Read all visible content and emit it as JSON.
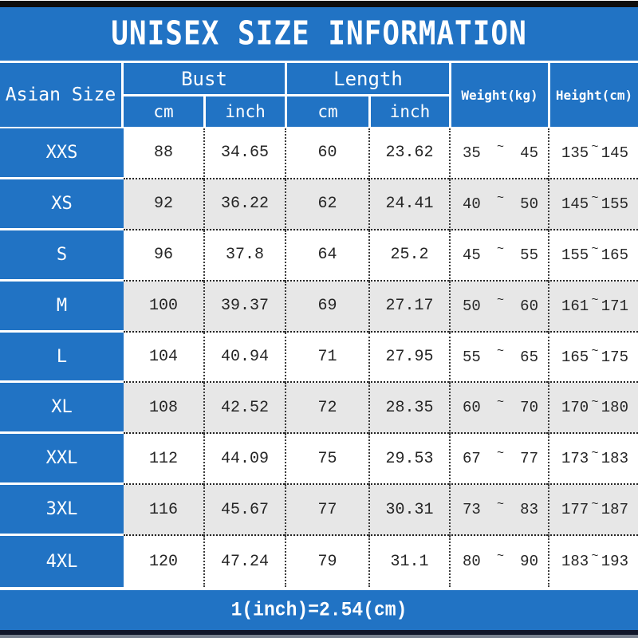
{
  "title": "UNISEX SIZE INFORMATION",
  "footer_note": "1(inch)=2.54(cm)",
  "colors": {
    "blue": "#2173c4",
    "row_alt": "#e7e7e7",
    "top_bar": "#0d0d0d"
  },
  "header": {
    "corner": "Asian Size",
    "bust": "Bust",
    "length": "Length",
    "cm": "cm",
    "inch": "inch",
    "weight": "Weight(kg)",
    "height": "Height(cm)"
  },
  "table": {
    "tilde": "~",
    "rows": [
      {
        "size": "XXS",
        "bust_cm": "88",
        "bust_inch": "34.65",
        "length_cm": "60",
        "length_inch": "23.62",
        "weight_min": "35",
        "weight_max": "45",
        "height_min": "135",
        "height_max": "145"
      },
      {
        "size": "XS",
        "bust_cm": "92",
        "bust_inch": "36.22",
        "length_cm": "62",
        "length_inch": "24.41",
        "weight_min": "40",
        "weight_max": "50",
        "height_min": "145",
        "height_max": "155"
      },
      {
        "size": "S",
        "bust_cm": "96",
        "bust_inch": "37.8",
        "length_cm": "64",
        "length_inch": "25.2",
        "weight_min": "45",
        "weight_max": "55",
        "height_min": "155",
        "height_max": "165"
      },
      {
        "size": "M",
        "bust_cm": "100",
        "bust_inch": "39.37",
        "length_cm": "69",
        "length_inch": "27.17",
        "weight_min": "50",
        "weight_max": "60",
        "height_min": "161",
        "height_max": "171"
      },
      {
        "size": "L",
        "bust_cm": "104",
        "bust_inch": "40.94",
        "length_cm": "71",
        "length_inch": "27.95",
        "weight_min": "55",
        "weight_max": "65",
        "height_min": "165",
        "height_max": "175"
      },
      {
        "size": "XL",
        "bust_cm": "108",
        "bust_inch": "42.52",
        "length_cm": "72",
        "length_inch": "28.35",
        "weight_min": "60",
        "weight_max": "70",
        "height_min": "170",
        "height_max": "180"
      },
      {
        "size": "XXL",
        "bust_cm": "112",
        "bust_inch": "44.09",
        "length_cm": "75",
        "length_inch": "29.53",
        "weight_min": "67",
        "weight_max": "77",
        "height_min": "173",
        "height_max": "183"
      },
      {
        "size": "3XL",
        "bust_cm": "116",
        "bust_inch": "45.67",
        "length_cm": "77",
        "length_inch": "30.31",
        "weight_min": "73",
        "weight_max": "83",
        "height_min": "177",
        "height_max": "187"
      },
      {
        "size": "4XL",
        "bust_cm": "120",
        "bust_inch": "47.24",
        "length_cm": "79",
        "length_inch": "31.1",
        "weight_min": "80",
        "weight_max": "90",
        "height_min": "183",
        "height_max": "193"
      }
    ]
  },
  "chart_data": {
    "type": "table",
    "title": "UNISEX SIZE INFORMATION",
    "note": "1(inch)=2.54(cm)",
    "columns": [
      "Asian Size",
      "Bust cm",
      "Bust inch",
      "Length cm",
      "Length inch",
      "Weight(kg)",
      "Height(cm)"
    ],
    "rows": [
      [
        "XXS",
        "88",
        "34.65",
        "60",
        "23.62",
        "35~45",
        "135~145"
      ],
      [
        "XS",
        "92",
        "36.22",
        "62",
        "24.41",
        "40~50",
        "145~155"
      ],
      [
        "S",
        "96",
        "37.8",
        "64",
        "25.2",
        "45~55",
        "155~165"
      ],
      [
        "M",
        "100",
        "39.37",
        "69",
        "27.17",
        "50~60",
        "161~171"
      ],
      [
        "L",
        "104",
        "40.94",
        "71",
        "27.95",
        "55~65",
        "165~175"
      ],
      [
        "XL",
        "108",
        "42.52",
        "72",
        "28.35",
        "60~70",
        "170~180"
      ],
      [
        "XXL",
        "112",
        "44.09",
        "75",
        "29.53",
        "67~77",
        "173~183"
      ],
      [
        "3XL",
        "116",
        "45.67",
        "77",
        "30.31",
        "73~83",
        "177~187"
      ],
      [
        "4XL",
        "120",
        "47.24",
        "79",
        "31.1",
        "80~90",
        "183~193"
      ]
    ]
  }
}
